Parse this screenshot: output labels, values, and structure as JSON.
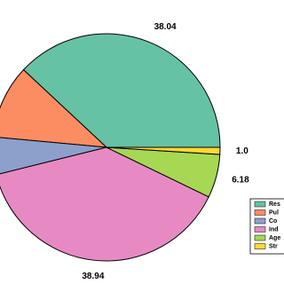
{
  "chart_data": {
    "type": "pie",
    "categories": [
      "Res",
      "Pul",
      "Co",
      "Ind",
      "Age",
      "Str"
    ],
    "values": [
      38.04,
      10.5,
      5.34,
      38.94,
      6.18,
      1.0
    ],
    "value_labels": [
      "38.04",
      null,
      null,
      "38.94",
      "6.18",
      "1.0"
    ],
    "colors": [
      "#66c2a5",
      "#fc8d62",
      "#8da0cb",
      "#e78ac3",
      "#a6d854",
      "#ffd92f"
    ]
  }
}
